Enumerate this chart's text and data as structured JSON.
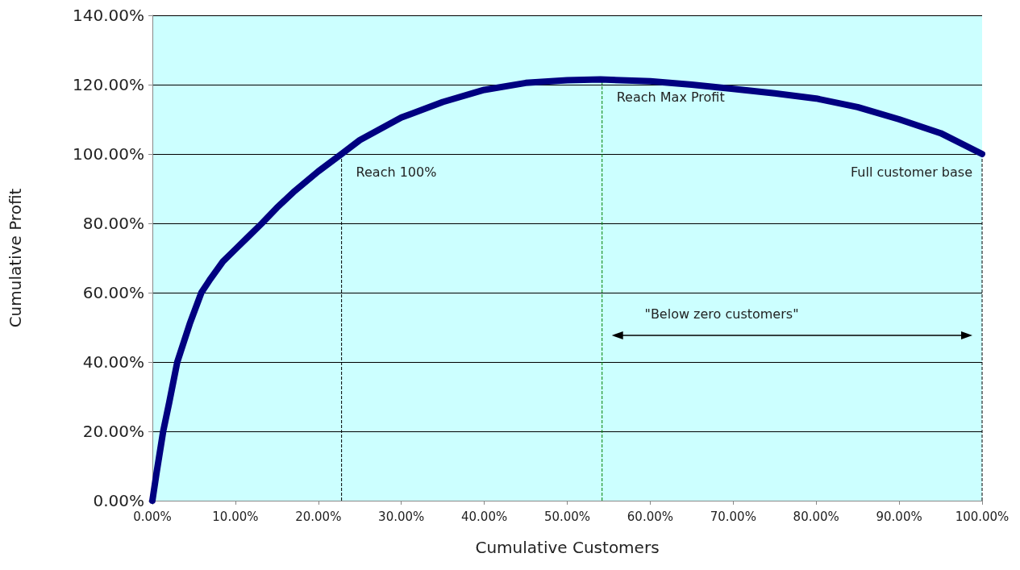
{
  "chart_data": {
    "type": "line",
    "xlabel": "Cumulative Customers",
    "ylabel": "Cumulative Profit",
    "series": [
      {
        "color": "#000080",
        "x": [
          0,
          0.5,
          1.3,
          2,
          3,
          4.5,
          5.9,
          7,
          8.5,
          10,
          11.5,
          13.2,
          15,
          17,
          20,
          22.8,
          25,
          30,
          35,
          40,
          45,
          50,
          54,
          60,
          65,
          70,
          75,
          80,
          85,
          90,
          95,
          100
        ],
        "values": [
          0,
          8,
          20,
          28,
          40,
          51,
          60,
          64,
          69,
          72.5,
          76,
          80,
          84.5,
          89,
          95,
          100,
          104,
          110.5,
          115,
          118.5,
          120.5,
          121.3,
          121.5,
          121,
          120,
          118.8,
          117.5,
          116,
          113.5,
          110,
          106,
          100
        ]
      }
    ],
    "xlim": [
      0,
      100
    ],
    "xticks": [
      {
        "value": 0,
        "label": "0.00%"
      },
      {
        "value": 10,
        "label": "10.00%"
      },
      {
        "value": 20,
        "label": "20.00%"
      },
      {
        "value": 30,
        "label": "30.00%"
      },
      {
        "value": 40,
        "label": "40.00%"
      },
      {
        "value": 50,
        "label": "50.00%"
      },
      {
        "value": 60,
        "label": "60.00%"
      },
      {
        "value": 70,
        "label": "70.00%"
      },
      {
        "value": 80,
        "label": "80.00%"
      },
      {
        "value": 90,
        "label": "90.00%"
      },
      {
        "value": 100,
        "label": "100.00%"
      }
    ],
    "ylim": [
      0,
      140
    ],
    "yticks": [
      {
        "value": 0,
        "label": "0.00%"
      },
      {
        "value": 20,
        "label": "20.00%"
      },
      {
        "value": 40,
        "label": "40.00%"
      },
      {
        "value": 60,
        "label": "60.00%"
      },
      {
        "value": 80,
        "label": "80.00%"
      },
      {
        "value": 100,
        "label": "100.00%"
      },
      {
        "value": 120,
        "label": "120.00%"
      },
      {
        "value": 140,
        "label": "140.00%"
      }
    ],
    "grid": "y",
    "line_style": "solid",
    "ref_lines": [
      {
        "axis": "x",
        "value": 22.8,
        "label": "Reach 100%",
        "color": "#000000",
        "line_style": "dashed"
      },
      {
        "axis": "x",
        "value": 54.2,
        "label": "Reach Max Profit",
        "color": "#008000",
        "line_style": "dashed"
      },
      {
        "axis": "x",
        "value": 100,
        "label": "Full customer base",
        "color": "#000000",
        "line_style": "dashed"
      }
    ],
    "annotations": [
      "\"Below zero customers\""
    ]
  }
}
